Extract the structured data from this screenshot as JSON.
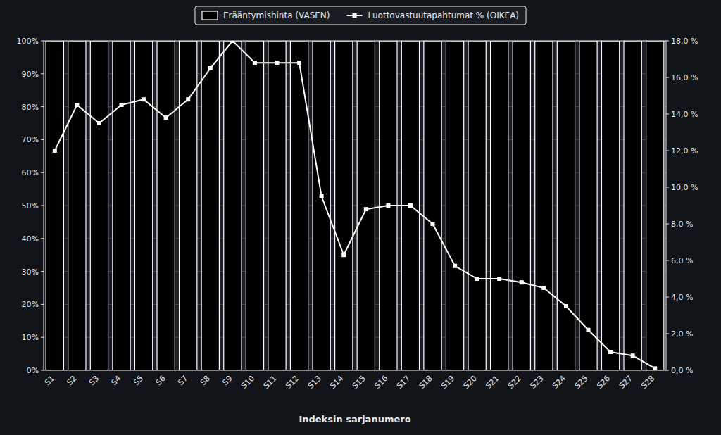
{
  "chart_data": {
    "type": "bar",
    "xlabel": "Indeksin sarjanumero",
    "categories": [
      "S1",
      "S2",
      "S3",
      "S4",
      "S5",
      "S6",
      "S7",
      "S8",
      "S9",
      "S10",
      "S11",
      "S12",
      "S13",
      "S14",
      "S15",
      "S16",
      "S17",
      "S18",
      "S19",
      "S20",
      "S21",
      "S22",
      "S23",
      "S24",
      "S25",
      "S26",
      "S27",
      "S28"
    ],
    "series": [
      {
        "name": "Erääntymishinta (VASEN)",
        "type": "bar",
        "color": "#000000",
        "values": [
          1.0,
          1.0,
          1.0,
          1.0,
          1.0,
          1.0,
          1.0,
          1.0,
          1.0,
          1.0,
          1.0,
          1.0,
          1.0,
          1.0,
          1.0,
          1.0,
          1.0,
          1.0,
          1.0,
          1.0,
          1.0,
          1.0,
          1.0,
          1.0,
          1.0,
          1.0,
          1.0,
          1.0
        ]
      },
      {
        "name": "Luottovastuutapahtumat % (OIKEA)",
        "type": "line",
        "color": "#ffffff",
        "marker": "square",
        "axis": "y2",
        "values": [
          0.12,
          0.145,
          0.135,
          0.145,
          0.148,
          0.138,
          0.148,
          0.165,
          0.18,
          0.168,
          0.168,
          0.168,
          0.095,
          0.063,
          0.088,
          0.09,
          0.09,
          0.08,
          0.057,
          0.05,
          0.05,
          0.048,
          0.045,
          0.035,
          0.022,
          0.01,
          0.008,
          0.001
        ]
      }
    ],
    "ylim": [
      0.0,
      1.0
    ],
    "yticks": [
      {
        "value": 0.0,
        "label": "0%"
      },
      {
        "value": 0.1,
        "label": "10%"
      },
      {
        "value": 0.2,
        "label": "20%"
      },
      {
        "value": 0.3,
        "label": "30%"
      },
      {
        "value": 0.4,
        "label": "40%"
      },
      {
        "value": 0.5,
        "label": "50%"
      },
      {
        "value": 0.6,
        "label": "60%"
      },
      {
        "value": 0.7,
        "label": "70%"
      },
      {
        "value": 0.8,
        "label": "80%"
      },
      {
        "value": 0.9,
        "label": "90%"
      },
      {
        "value": 1.0,
        "label": "100%"
      }
    ],
    "y2lim": [
      0.0,
      0.18
    ],
    "y2ticks": [
      {
        "value": 0.0,
        "label": "0,0 %"
      },
      {
        "value": 0.02,
        "label": "2,0 %"
      },
      {
        "value": 0.04,
        "label": "4,0 %"
      },
      {
        "value": 0.06,
        "label": "6,0 %"
      },
      {
        "value": 0.08,
        "label": "8,0 %"
      },
      {
        "value": 0.1,
        "label": "10,0 %"
      },
      {
        "value": 0.12,
        "label": "12,0 %"
      },
      {
        "value": 0.14,
        "label": "14,0 %"
      },
      {
        "value": 0.16,
        "label": "16,0 %"
      },
      {
        "value": 0.18,
        "label": "18,0 %"
      }
    ],
    "grid": true,
    "legend": "top"
  }
}
